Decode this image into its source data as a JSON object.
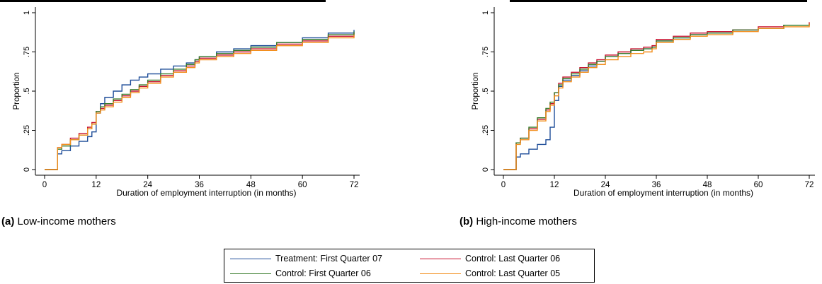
{
  "colors": {
    "treatment_q1_07": "#1f4e99",
    "control_q1_06": "#3a7d2c",
    "control_lq_06": "#c8102e",
    "control_lq_05": "#f28e1c"
  },
  "captions": {
    "a_label": "(a)",
    "a_text": "Low-income mothers",
    "b_label": "(b)",
    "b_text": "High-income mothers"
  },
  "legend": [
    {
      "name": "Treatment: First Quarter 07",
      "color": "#1f4e99"
    },
    {
      "name": "Control: Last Quarter 06",
      "color": "#c8102e"
    },
    {
      "name": "Control: First Quarter 06",
      "color": "#3a7d2c"
    },
    {
      "name": "Control: Last Quarter 05",
      "color": "#f28e1c"
    }
  ],
  "chart_data": [
    {
      "type": "line",
      "panel": "a",
      "xlabel": "Duration of employment interruption (in months)",
      "ylabel": "Proportion",
      "xlim": [
        0,
        72
      ],
      "ylim": [
        0,
        1
      ],
      "xticks": [
        "0",
        "12",
        "24",
        "36",
        "48",
        "60",
        "72"
      ],
      "yticks": [
        "0",
        ".25",
        ".5",
        ".75",
        "1"
      ],
      "step": true,
      "grid": false,
      "legend_position": "bottom",
      "series": [
        {
          "name": "Treatment: First Quarter 07",
          "color": "#1f4e99",
          "x": [
            0,
            3,
            4,
            6,
            8,
            10,
            11,
            12,
            13,
            14,
            16,
            18,
            20,
            22,
            24,
            27,
            30,
            33,
            35,
            36,
            40,
            44,
            48,
            54,
            60,
            66,
            72
          ],
          "y": [
            0,
            0.1,
            0.12,
            0.15,
            0.18,
            0.21,
            0.24,
            0.36,
            0.42,
            0.46,
            0.5,
            0.54,
            0.57,
            0.59,
            0.61,
            0.64,
            0.66,
            0.68,
            0.7,
            0.72,
            0.75,
            0.77,
            0.79,
            0.81,
            0.84,
            0.87,
            0.89
          ]
        },
        {
          "name": "Control: Last Quarter 06",
          "color": "#c8102e",
          "x": [
            0,
            3,
            4,
            6,
            8,
            10,
            11,
            12,
            13,
            14,
            16,
            18,
            20,
            22,
            24,
            27,
            30,
            33,
            35,
            36,
            40,
            44,
            48,
            54,
            60,
            66,
            72
          ],
          "y": [
            0,
            0.14,
            0.16,
            0.2,
            0.23,
            0.27,
            0.3,
            0.37,
            0.39,
            0.41,
            0.44,
            0.47,
            0.5,
            0.53,
            0.56,
            0.6,
            0.63,
            0.66,
            0.69,
            0.71,
            0.73,
            0.75,
            0.77,
            0.8,
            0.82,
            0.85,
            0.87
          ]
        },
        {
          "name": "Control: First Quarter 06",
          "color": "#3a7d2c",
          "x": [
            0,
            3,
            4,
            6,
            8,
            10,
            11,
            12,
            13,
            14,
            16,
            18,
            20,
            22,
            24,
            27,
            30,
            33,
            35,
            36,
            40,
            44,
            48,
            54,
            60,
            66,
            72
          ],
          "y": [
            0,
            0.13,
            0.15,
            0.19,
            0.22,
            0.26,
            0.29,
            0.37,
            0.4,
            0.42,
            0.45,
            0.48,
            0.51,
            0.54,
            0.57,
            0.61,
            0.64,
            0.67,
            0.7,
            0.72,
            0.74,
            0.76,
            0.78,
            0.81,
            0.83,
            0.86,
            0.88
          ]
        },
        {
          "name": "Control: Last Quarter 05",
          "color": "#f28e1c",
          "x": [
            0,
            3,
            4,
            6,
            8,
            10,
            11,
            12,
            13,
            14,
            16,
            18,
            20,
            22,
            24,
            27,
            30,
            33,
            35,
            36,
            40,
            44,
            48,
            54,
            60,
            66,
            72
          ],
          "y": [
            0,
            0.14,
            0.16,
            0.19,
            0.22,
            0.26,
            0.29,
            0.36,
            0.38,
            0.4,
            0.43,
            0.46,
            0.49,
            0.52,
            0.55,
            0.59,
            0.62,
            0.65,
            0.68,
            0.7,
            0.72,
            0.74,
            0.76,
            0.79,
            0.81,
            0.84,
            0.86
          ]
        }
      ]
    },
    {
      "type": "line",
      "panel": "b",
      "xlabel": "Duration of employment interruption (in months)",
      "ylabel": "Proportion",
      "xlim": [
        0,
        72
      ],
      "ylim": [
        0,
        1
      ],
      "xticks": [
        "0",
        "12",
        "24",
        "36",
        "48",
        "60",
        "72"
      ],
      "yticks": [
        "0",
        ".25",
        ".5",
        ".75",
        "1"
      ],
      "step": true,
      "grid": false,
      "legend_position": "bottom",
      "series": [
        {
          "name": "Treatment: First Quarter 07",
          "color": "#1f4e99",
          "x": [
            0,
            3,
            4,
            6,
            8,
            10,
            11,
            12,
            13,
            14,
            16,
            18,
            20,
            22,
            24,
            27,
            30,
            33,
            35,
            36,
            40,
            44,
            48,
            54,
            60,
            66,
            72
          ],
          "y": [
            0,
            0.08,
            0.1,
            0.13,
            0.16,
            0.19,
            0.27,
            0.44,
            0.53,
            0.57,
            0.6,
            0.63,
            0.66,
            0.69,
            0.72,
            0.74,
            0.76,
            0.77,
            0.78,
            0.82,
            0.84,
            0.86,
            0.87,
            0.89,
            0.9,
            0.92,
            0.93
          ]
        },
        {
          "name": "Control: Last Quarter 06",
          "color": "#c8102e",
          "x": [
            0,
            3,
            4,
            6,
            8,
            10,
            11,
            12,
            13,
            14,
            16,
            18,
            20,
            22,
            24,
            27,
            30,
            33,
            35,
            36,
            40,
            44,
            48,
            54,
            60,
            66,
            72
          ],
          "y": [
            0,
            0.17,
            0.2,
            0.26,
            0.32,
            0.38,
            0.42,
            0.49,
            0.55,
            0.59,
            0.62,
            0.65,
            0.68,
            0.7,
            0.73,
            0.75,
            0.77,
            0.78,
            0.79,
            0.83,
            0.85,
            0.87,
            0.88,
            0.89,
            0.91,
            0.92,
            0.94
          ]
        },
        {
          "name": "Control: First Quarter 06",
          "color": "#3a7d2c",
          "x": [
            0,
            3,
            4,
            6,
            8,
            10,
            11,
            12,
            13,
            14,
            16,
            18,
            20,
            22,
            24,
            27,
            30,
            33,
            35,
            36,
            40,
            44,
            48,
            54,
            60,
            66,
            72
          ],
          "y": [
            0,
            0.17,
            0.2,
            0.27,
            0.33,
            0.39,
            0.43,
            0.49,
            0.54,
            0.58,
            0.61,
            0.64,
            0.67,
            0.69,
            0.72,
            0.74,
            0.76,
            0.77,
            0.78,
            0.82,
            0.84,
            0.86,
            0.87,
            0.89,
            0.9,
            0.92,
            0.93
          ]
        },
        {
          "name": "Control: Last Quarter 05",
          "color": "#f28e1c",
          "x": [
            0,
            3,
            4,
            6,
            8,
            10,
            11,
            12,
            13,
            14,
            16,
            18,
            20,
            22,
            24,
            27,
            30,
            33,
            35,
            36,
            40,
            44,
            48,
            54,
            60,
            66,
            72
          ],
          "y": [
            0,
            0.16,
            0.19,
            0.25,
            0.31,
            0.37,
            0.41,
            0.47,
            0.52,
            0.56,
            0.59,
            0.62,
            0.65,
            0.67,
            0.7,
            0.72,
            0.74,
            0.75,
            0.77,
            0.81,
            0.83,
            0.85,
            0.86,
            0.88,
            0.9,
            0.91,
            0.93
          ]
        }
      ]
    }
  ]
}
